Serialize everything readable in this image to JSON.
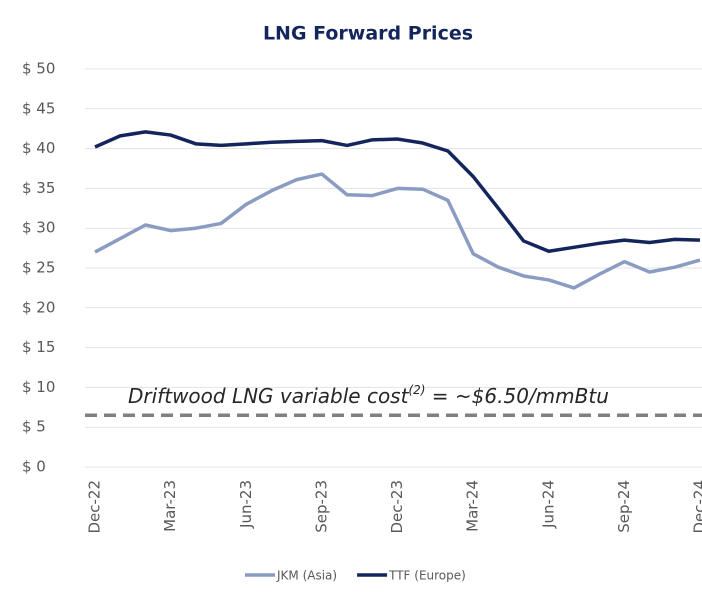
{
  "chart_data": {
    "type": "line",
    "title": "LNG Forward Prices",
    "categories": [
      "Dec-22",
      null,
      null,
      "Mar-23",
      null,
      null,
      "Jun-23",
      null,
      null,
      "Sep-23",
      null,
      null,
      "Dec-23",
      null,
      null,
      "Mar-24",
      null,
      null,
      "Jun-24",
      null,
      null,
      "Sep-24",
      null,
      null,
      "Dec-24"
    ],
    "series": [
      {
        "name": "JKM (Asia)",
        "color": "#8a9cc2",
        "values": [
          27,
          28.7,
          30.4,
          29.7,
          30,
          30.6,
          33,
          34.7,
          36.1,
          36.8,
          34.2,
          34.1,
          35,
          34.9,
          33.5,
          26.8,
          25.1,
          24,
          23.5,
          22.5,
          24.2,
          25.8,
          24.5,
          25.1,
          26
        ]
      },
      {
        "name": "TTF (Europe)",
        "color": "#13255c",
        "values": [
          40.2,
          41.6,
          42.1,
          41.7,
          40.6,
          40.4,
          40.6,
          40.8,
          40.9,
          41,
          40.4,
          41.1,
          41.2,
          40.7,
          39.7,
          36.5,
          32.5,
          28.4,
          27.1,
          27.6,
          28.1,
          28.5,
          28.2,
          28.6,
          28.5
        ]
      }
    ],
    "ylim": [
      0,
      50
    ],
    "yticks": [
      {
        "value": 0,
        "label": "$ 0"
      },
      {
        "value": 5,
        "label": "$ 5"
      },
      {
        "value": 10,
        "label": "$ 10"
      },
      {
        "value": 15,
        "label": "$ 15"
      },
      {
        "value": 20,
        "label": "$ 20"
      },
      {
        "value": 25,
        "label": "$ 25"
      },
      {
        "value": 30,
        "label": "$ 30"
      },
      {
        "value": 35,
        "label": "$ 35"
      },
      {
        "value": 40,
        "label": "$ 40"
      },
      {
        "value": 45,
        "label": "$ 45"
      },
      {
        "value": 50,
        "label": "$ 50"
      }
    ],
    "grid": true,
    "reference_line": {
      "value": 6.5,
      "color": "#808080",
      "annotation": {
        "text": "Driftwood LNG variable cost",
        "superscript": "(2)",
        "suffix": " = ~$6.50/mmBtu"
      }
    },
    "legend": "bottom"
  }
}
